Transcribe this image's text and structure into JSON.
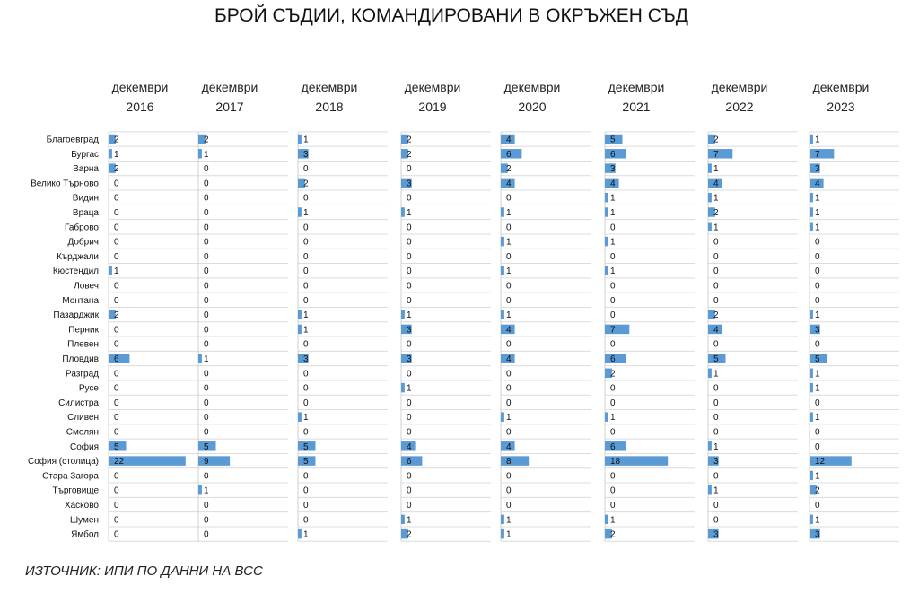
{
  "chart_data": {
    "type": "bar",
    "orientation": "horizontal",
    "layout": "small-multiples",
    "title": "БРОЙ СЪДИИ, КОМАНДИРОВАНИ В ОКРЪЖЕН СЪД",
    "bar_color": "#5B9BD5",
    "categories": [
      "Благоевград",
      "Бургас",
      "Варна",
      "Велико Търново",
      "Видин",
      "Враца",
      "Габрово",
      "Добрич",
      "Кърджали",
      "Кюстендил",
      "Ловеч",
      "Монтана",
      "Пазарджик",
      "Перник",
      "Плевен",
      "Пловдив",
      "Разград",
      "Русе",
      "Силистра",
      "Сливен",
      "Смолян",
      "София",
      "София (столица)",
      "Стара Загора",
      "Търговище",
      "Хасково",
      "Шумен",
      "Ямбол"
    ],
    "series": [
      {
        "header_line1": "декември",
        "header_line2": "2016",
        "values": [
          2,
          1,
          2,
          0,
          0,
          0,
          0,
          0,
          0,
          1,
          0,
          0,
          2,
          0,
          0,
          6,
          0,
          0,
          0,
          0,
          0,
          5,
          22,
          0,
          0,
          0,
          0,
          0
        ]
      },
      {
        "header_line1": "декември",
        "header_line2": "2017",
        "values": [
          2,
          1,
          0,
          0,
          0,
          0,
          0,
          0,
          0,
          0,
          0,
          0,
          0,
          0,
          0,
          1,
          0,
          0,
          0,
          0,
          0,
          5,
          9,
          0,
          1,
          0,
          0,
          0
        ]
      },
      {
        "header_line1": "декември",
        "header_line2": "2018",
        "values": [
          1,
          3,
          0,
          2,
          0,
          1,
          0,
          0,
          0,
          0,
          0,
          0,
          1,
          1,
          0,
          3,
          0,
          0,
          0,
          1,
          0,
          5,
          5,
          0,
          0,
          0,
          0,
          1
        ]
      },
      {
        "header_line1": "декември",
        "header_line2": "2019",
        "values": [
          2,
          2,
          0,
          3,
          0,
          1,
          0,
          0,
          0,
          0,
          0,
          0,
          1,
          3,
          0,
          3,
          0,
          1,
          0,
          0,
          0,
          4,
          6,
          0,
          0,
          0,
          1,
          2
        ]
      },
      {
        "header_line1": "декември",
        "header_line2": "2020",
        "values": [
          4,
          6,
          2,
          4,
          0,
          1,
          0,
          1,
          0,
          1,
          0,
          0,
          1,
          4,
          0,
          4,
          0,
          0,
          0,
          1,
          0,
          4,
          8,
          0,
          0,
          0,
          1,
          1
        ]
      },
      {
        "header_line1": "декември",
        "header_line2": "2021",
        "values": [
          5,
          6,
          3,
          4,
          1,
          1,
          0,
          1,
          0,
          1,
          0,
          0,
          0,
          7,
          0,
          6,
          2,
          0,
          0,
          1,
          0,
          6,
          18,
          0,
          0,
          0,
          1,
          2
        ]
      },
      {
        "header_line1": "декември",
        "header_line2": "2022",
        "values": [
          2,
          7,
          1,
          4,
          1,
          2,
          1,
          0,
          0,
          0,
          0,
          0,
          2,
          4,
          0,
          5,
          1,
          0,
          0,
          0,
          0,
          1,
          3,
          0,
          1,
          0,
          0,
          3
        ]
      },
      {
        "header_line1": "декември",
        "header_line2": "2023",
        "values": [
          1,
          7,
          3,
          4,
          1,
          1,
          1,
          0,
          0,
          0,
          0,
          0,
          1,
          3,
          0,
          5,
          1,
          1,
          0,
          1,
          0,
          0,
          12,
          1,
          2,
          0,
          1,
          3
        ]
      }
    ]
  },
  "source": "ИЗТОЧНИК: ИПИ ПО ДАННИ НА ВСС"
}
